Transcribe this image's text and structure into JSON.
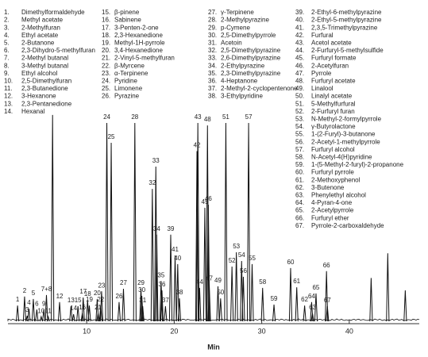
{
  "chart_data": {
    "type": "chromatogram",
    "x_label": "Min",
    "xlim": [
      1,
      48
    ],
    "xticks": [
      10,
      20,
      30,
      40
    ],
    "ylim": [
      0,
      100
    ],
    "color": "#111111",
    "peak_labels": [
      "1",
      "2",
      "3",
      "4",
      "5",
      "6",
      "7+8",
      "9",
      "10",
      "11",
      null,
      "12",
      "13",
      "14",
      "15",
      "16",
      "17",
      "18",
      "19",
      "20",
      "21",
      "22",
      "23",
      "24",
      "25",
      "26",
      "27",
      "28",
      "29",
      "30",
      "31",
      "32",
      "33",
      "34",
      "35",
      "36",
      "37",
      "38",
      "39",
      "40",
      "41",
      "42",
      "43",
      "44",
      "45",
      "46",
      "47",
      "48",
      "49",
      "50",
      "51",
      "52",
      "53",
      "54",
      "55",
      "56",
      "57",
      "58",
      "59",
      "60",
      "61",
      "62",
      "63",
      "64",
      "65",
      "66",
      "67",
      null,
      null,
      null
    ],
    "peak_times": [
      2.1,
      2.9,
      3.2,
      3.4,
      3.9,
      4.3,
      5.4,
      5.1,
      4.8,
      5.6,
      6.1,
      6.9,
      8.2,
      8.5,
      9.0,
      9.5,
      9.6,
      10.1,
      10.3,
      11.2,
      11.3,
      11.6,
      11.7,
      12.3,
      12.8,
      13.7,
      14.2,
      15.5,
      16.2,
      16.3,
      16.4,
      17.5,
      17.9,
      18.0,
      18.5,
      18.6,
      19.0,
      20.6,
      19.6,
      20.4,
      20.1,
      22.6,
      22.7,
      22.9,
      23.5,
      23.9,
      24.0,
      23.8,
      25.0,
      25.3,
      25.9,
      26.6,
      27.1,
      27.7,
      28.9,
      27.9,
      28.5,
      30.1,
      31.4,
      33.3,
      34.0,
      34.9,
      35.8,
      35.7,
      36.2,
      37.4,
      37.5,
      42.5,
      44.4,
      46.4
    ],
    "peak_heights": [
      5.1,
      8,
      1.8,
      4.1,
      7.2,
      3.8,
      8.5,
      3.8,
      1.5,
      1.5,
      66.7,
      6.2,
      4.9,
      2.3,
      4.9,
      2.6,
      7.7,
      6.9,
      5.1,
      7.2,
      2.6,
      5.1,
      9.7,
      64.1,
      57.7,
      6.2,
      10.5,
      64.1,
      10.5,
      8.2,
      4.9,
      42.8,
      50,
      28,
      13,
      10,
      4.9,
      7.4,
      28,
      18.5,
      21.3,
      55,
      64.1,
      10.8,
      36.7,
      37.7,
      12,
      63.3,
      11.3,
      7.4,
      64.1,
      17.7,
      22.3,
      19.5,
      18.5,
      14.4,
      64.1,
      10.8,
      5.4,
      17.2,
      11,
      5.1,
      2.6,
      6.2,
      9,
      16.2,
      4.9,
      14,
      22,
      10
    ],
    "compound_columns": [
      [
        [
          "1.",
          "Dimethylformaldehyde"
        ],
        [
          "2.",
          "Methyl acetate"
        ],
        [
          "3.",
          "2-Methylfuran"
        ],
        [
          "4.",
          "Ethyl acetate"
        ],
        [
          "5.",
          "2-Butanone"
        ],
        [
          "6.",
          "2,3-Dihydro-5-methylfuran"
        ],
        [
          "7.",
          "2-Methyl butanal"
        ],
        [
          "8.",
          "3-Methyl butanal"
        ],
        [
          "9.",
          "Ethyl alcohol"
        ],
        [
          "10.",
          "2,5-Dimethylfuran"
        ],
        [
          "11.",
          "2,3-Butanedione"
        ],
        [
          "12.",
          "3-Hexanone"
        ],
        [
          "13.",
          "2,3-Pentanedione"
        ],
        [
          "14.",
          "Hexanal"
        ]
      ],
      [
        [
          "15.",
          "β-pinene"
        ],
        [
          "16.",
          "Sabinene"
        ],
        [
          "17.",
          "3-Penten-2-one"
        ],
        [
          "18.",
          "2,3-Hexanedione"
        ],
        [
          "19.",
          "Methyl-1H-pyrrole"
        ],
        [
          "20.",
          "3,4-Hexanedione"
        ],
        [
          "21.",
          "2-Vinyl-5-methylfuran"
        ],
        [
          "22.",
          "β-Myrcene"
        ],
        [
          "23.",
          "α-Terpinene"
        ],
        [
          "24.",
          "Pyridine"
        ],
        [
          "25.",
          "Limonene"
        ],
        [
          "26.",
          "Pyrazine"
        ]
      ],
      [
        [
          "27.",
          "γ-Terpinene"
        ],
        [
          "28.",
          "2-Methylpyrazine"
        ],
        [
          "29.",
          "p-Cymene"
        ],
        [
          "30.",
          "2,5-Dimethylpyrrole"
        ],
        [
          "31.",
          "Acetoin"
        ],
        [
          "32.",
          "2,5-Dimethylpyrazine"
        ],
        [
          "33.",
          "2,6-Dimethylpyrazine"
        ],
        [
          "34.",
          "2-Ethylpyrazine"
        ],
        [
          "35.",
          "2,3-Dimethylpyrazine"
        ],
        [
          "36.",
          "4-Heptanone"
        ],
        [
          "37.",
          "2-Methyl-2-cyclopentenone"
        ],
        [
          "38.",
          "3-Ethylpyridine"
        ]
      ],
      [
        [
          "39.",
          "2-Ethyl-6-methylpyrazine"
        ],
        [
          "40.",
          "2-Ethyl-5-methylpyrazine"
        ],
        [
          "41.",
          "2,3,5-Trimethylpyrazine"
        ],
        [
          "42.",
          "Furfural"
        ],
        [
          "43.",
          "Acetol acetate"
        ],
        [
          "44.",
          "2-Furfuryl-5-methylsulfide"
        ],
        [
          "45.",
          "Furfuryl formate"
        ],
        [
          "46.",
          "2-Acetylfuran"
        ],
        [
          "47.",
          "Pyrrole"
        ],
        [
          "48.",
          "Furfuryl acetate"
        ],
        [
          "49.",
          "Linalool"
        ],
        [
          "50.",
          "Linalyl acetate"
        ],
        [
          "51.",
          "5-Methylfurfural"
        ],
        [
          "52.",
          "2-Furfuryl furan"
        ],
        [
          "53.",
          "N-Methyl-2-formylpyrrole"
        ],
        [
          "54.",
          "γ-Butyrolactone"
        ],
        [
          "55.",
          "1-(2-Furyl)-3-butanone"
        ],
        [
          "56.",
          "2-Acetyl-1-methylpyrrole"
        ],
        [
          "57.",
          "Furfuryl alcohol"
        ],
        [
          "58.",
          "N-Acetyl-4(H)pyridine"
        ],
        [
          "59.",
          "1-(5-Methyl-2-furyl)-2-propanone"
        ],
        [
          "60.",
          "Furfuryl pyrrole"
        ],
        [
          "61.",
          "2-Methoxyphenol"
        ],
        [
          "62.",
          "3-Butenone"
        ],
        [
          "63.",
          "Phenylethyl alcohol"
        ],
        [
          "64.",
          "4-Pyran-4-one"
        ],
        [
          "65.",
          "2-Acetylpyrrole"
        ],
        [
          "66.",
          "Furfuryl ether"
        ],
        [
          "67.",
          "Pyrrole-2-carboxaldehyde"
        ]
      ]
    ]
  }
}
